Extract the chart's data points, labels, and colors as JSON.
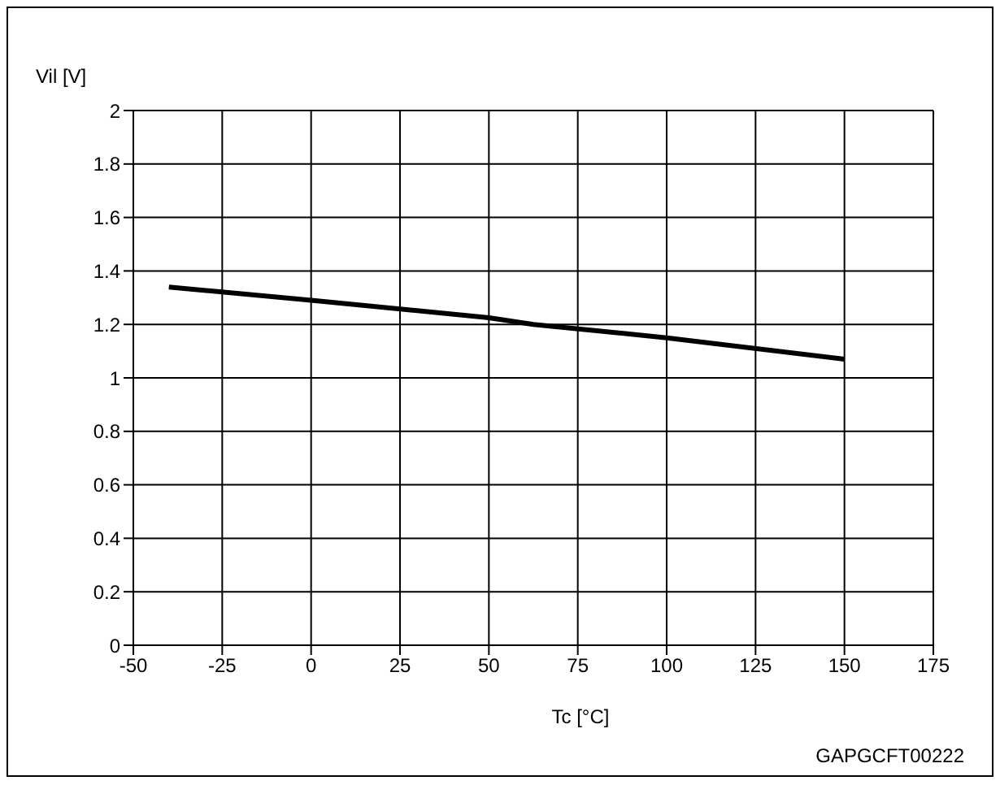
{
  "chart_data": {
    "type": "line",
    "xlabel": "Tc [°C]",
    "ylabel": "Vil [V]",
    "annotations": [
      "GAPGCFT00222"
    ],
    "x": [
      -40,
      0,
      50,
      62.5,
      100,
      150
    ],
    "series": [
      {
        "color": "#000000",
        "values": [
          1.34,
          1.29,
          1.225,
          1.2,
          1.15,
          1.07
        ]
      }
    ],
    "xlim": [
      -50,
      175
    ],
    "xticks": [
      -50,
      -25,
      0,
      25,
      50,
      75,
      100,
      125,
      150,
      175
    ],
    "ylim": [
      0,
      2
    ],
    "yticks": [
      0,
      0.2,
      0.4,
      0.6,
      0.8,
      1,
      1.2,
      1.4,
      1.6,
      1.8,
      2
    ],
    "grid": true,
    "legend": false,
    "marker": "none",
    "line_style": "solid"
  }
}
